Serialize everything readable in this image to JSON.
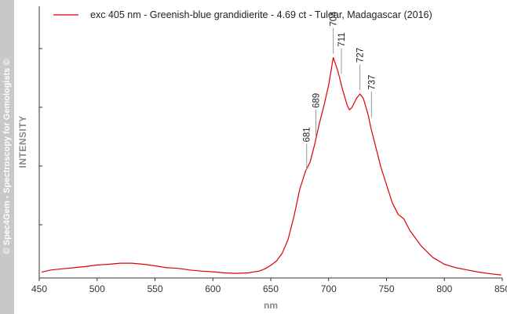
{
  "watermark": "© Spec4Gem - Spectroscopy for Gemologists ©",
  "chart_data": {
    "type": "line",
    "title": "",
    "xlabel": "nm",
    "ylabel": "INTENSITY",
    "xlim": [
      450,
      850
    ],
    "ylim": [
      0,
      1
    ],
    "x_ticks": [
      450,
      500,
      550,
      600,
      650,
      700,
      750,
      800,
      850
    ],
    "y_ticks_labeled": false,
    "grid": false,
    "legend_position": "top-left",
    "series": [
      {
        "name": "exc 405 nm - Greenish-blue grandidierite - 4.69 ct - Tulear, Madagascar (2016)",
        "color": "#e00000",
        "x": [
          452,
          460,
          470,
          480,
          490,
          500,
          510,
          520,
          530,
          540,
          550,
          560,
          570,
          580,
          590,
          600,
          610,
          620,
          630,
          640,
          645,
          650,
          655,
          660,
          665,
          670,
          675,
          680,
          684,
          688,
          692,
          696,
          700,
          704,
          708,
          712,
          716,
          718,
          720,
          724,
          727,
          730,
          734,
          737,
          740,
          745,
          750,
          755,
          760,
          765,
          770,
          780,
          790,
          800,
          810,
          820,
          830,
          840,
          849
        ],
        "y": [
          0.015,
          0.025,
          0.03,
          0.035,
          0.04,
          0.047,
          0.05,
          0.055,
          0.055,
          0.05,
          0.043,
          0.035,
          0.032,
          0.025,
          0.02,
          0.017,
          0.012,
          0.01,
          0.012,
          0.02,
          0.03,
          0.045,
          0.065,
          0.1,
          0.16,
          0.26,
          0.38,
          0.46,
          0.5,
          0.58,
          0.67,
          0.75,
          0.84,
          0.96,
          0.9,
          0.82,
          0.75,
          0.73,
          0.74,
          0.78,
          0.8,
          0.78,
          0.71,
          0.64,
          0.58,
          0.48,
          0.4,
          0.32,
          0.27,
          0.25,
          0.2,
          0.13,
          0.08,
          0.05,
          0.035,
          0.025,
          0.015,
          0.008,
          0.003
        ]
      }
    ],
    "peaks": [
      {
        "label": "681",
        "x": 681,
        "y": 0.45
      },
      {
        "label": "689",
        "x": 689,
        "y": 0.6
      },
      {
        "label": "704",
        "x": 704,
        "y": 0.96
      },
      {
        "label": "711",
        "x": 711,
        "y": 0.87
      },
      {
        "label": "727",
        "x": 727,
        "y": 0.8
      },
      {
        "label": "737",
        "x": 737,
        "y": 0.68
      }
    ],
    "x_tick_labels": [
      "450",
      "500",
      "550",
      "600",
      "650",
      "700",
      "750",
      "800",
      "850"
    ]
  }
}
